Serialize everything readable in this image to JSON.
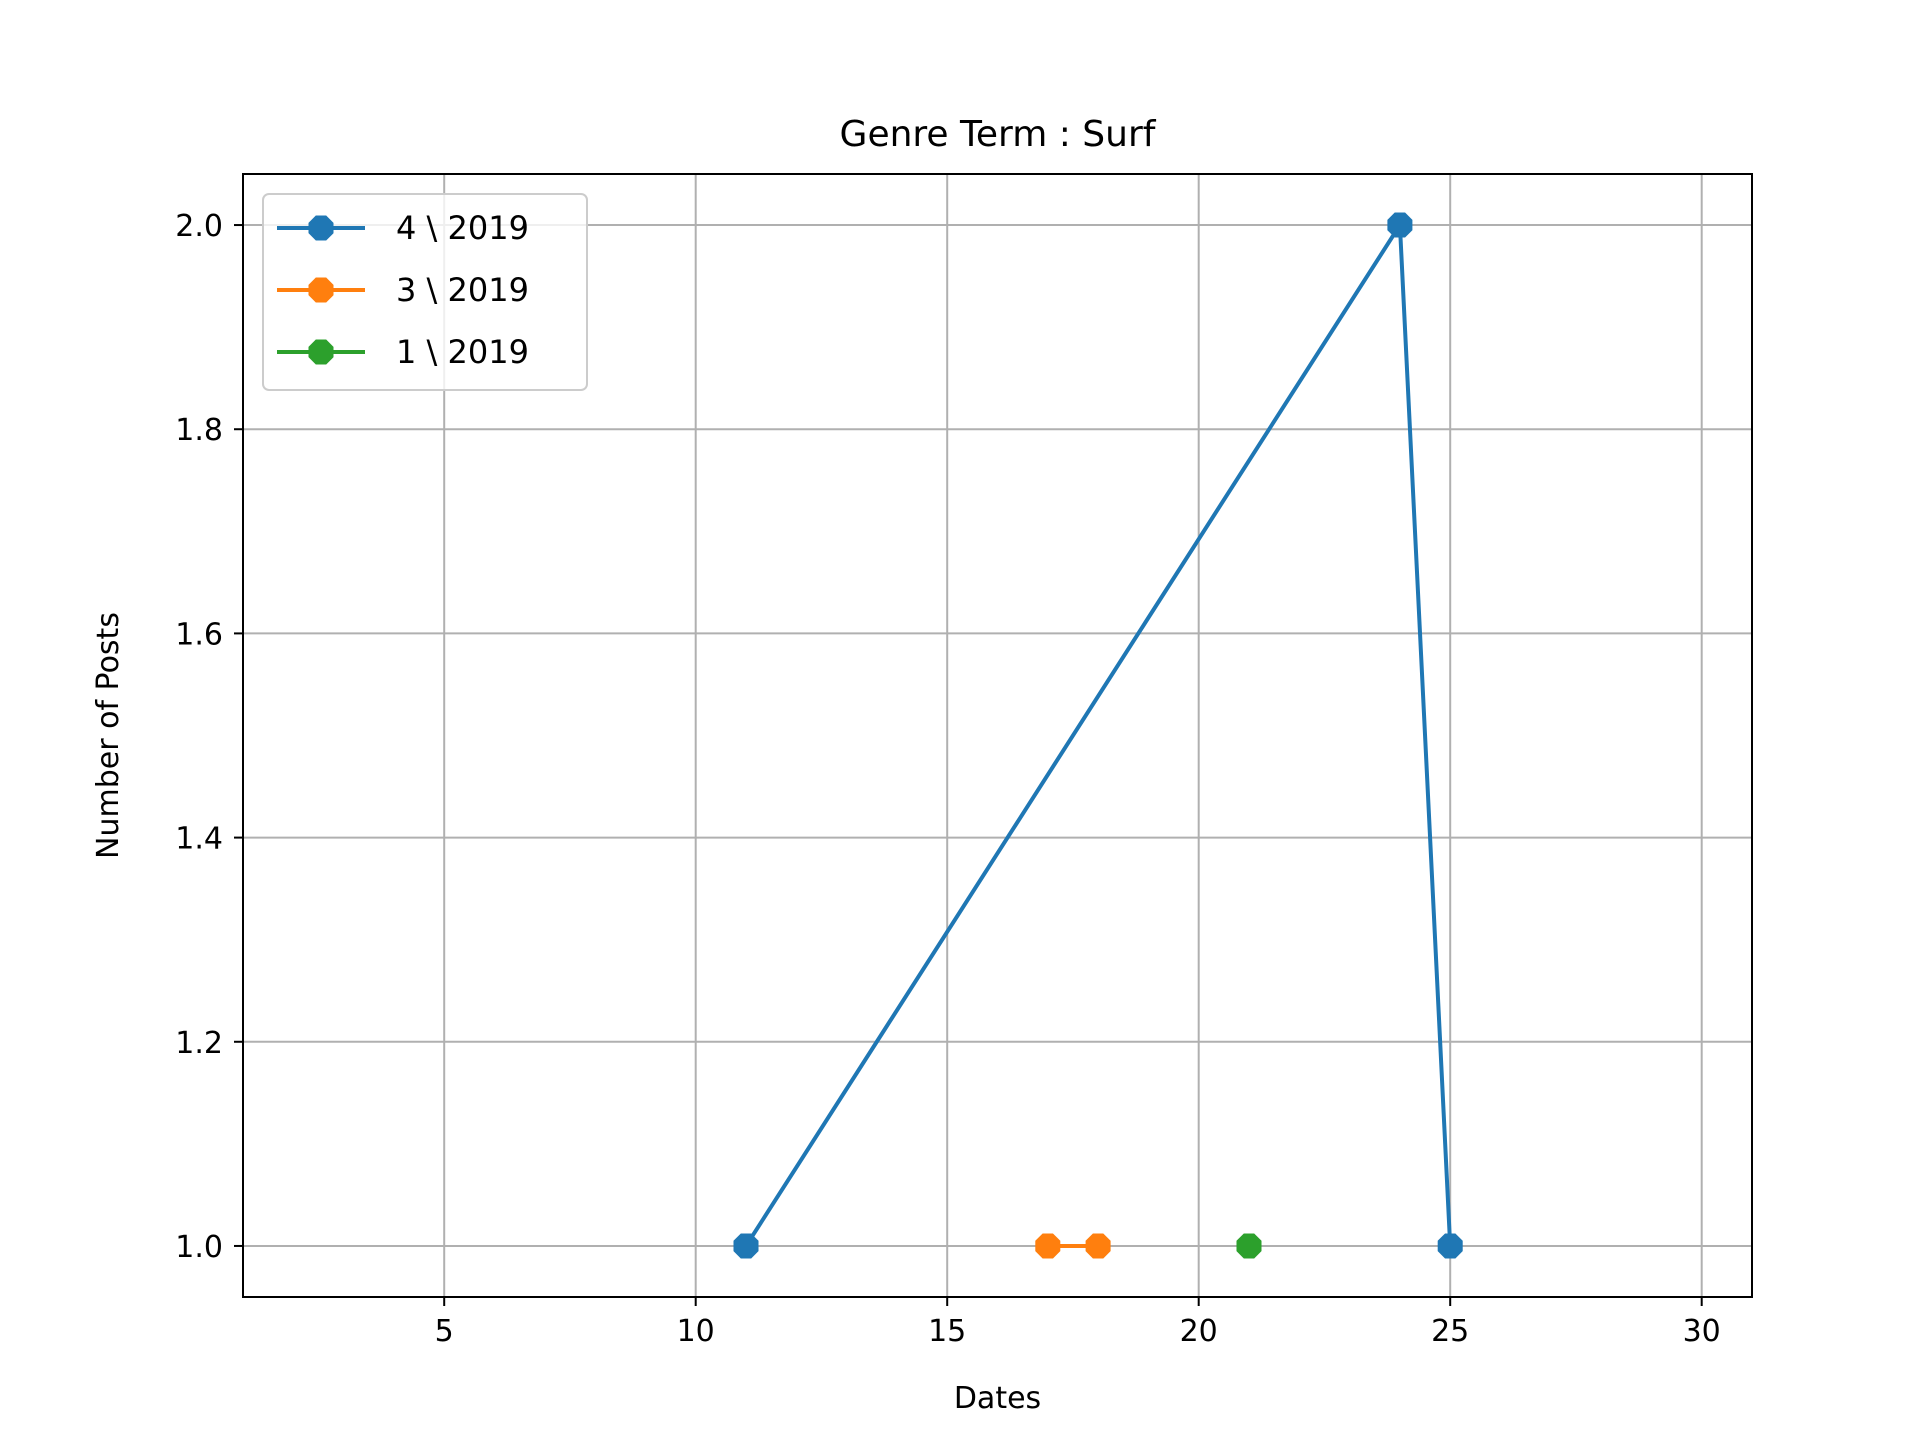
{
  "chart_data": {
    "type": "line",
    "title": "Genre Term : Surf",
    "xlabel": "Dates",
    "ylabel": "Number of Posts",
    "xlim": [
      1,
      31
    ],
    "ylim": [
      0.95,
      2.05
    ],
    "xticks": [
      5,
      10,
      15,
      20,
      25,
      30
    ],
    "xtick_labels": [
      "5",
      "10",
      "15",
      "20",
      "25",
      "30"
    ],
    "yticks": [
      1.0,
      1.2,
      1.4,
      1.6,
      1.8,
      2.0
    ],
    "ytick_labels": [
      "1.0",
      "1.2",
      "1.4",
      "1.6",
      "1.8",
      "2.0"
    ],
    "grid": true,
    "legend_position": "top-left",
    "series": [
      {
        "name": "4 \\ 2019",
        "color": "#1f77b4",
        "marker": "octagon",
        "x": [
          11,
          24,
          25
        ],
        "y": [
          1,
          2,
          1
        ]
      },
      {
        "name": "3 \\ 2019",
        "color": "#ff7f0e",
        "marker": "octagon",
        "x": [
          17,
          18
        ],
        "y": [
          1,
          1
        ]
      },
      {
        "name": "1 \\ 2019",
        "color": "#2ca02c",
        "marker": "octagon",
        "x": [
          21
        ],
        "y": [
          1
        ]
      }
    ]
  }
}
